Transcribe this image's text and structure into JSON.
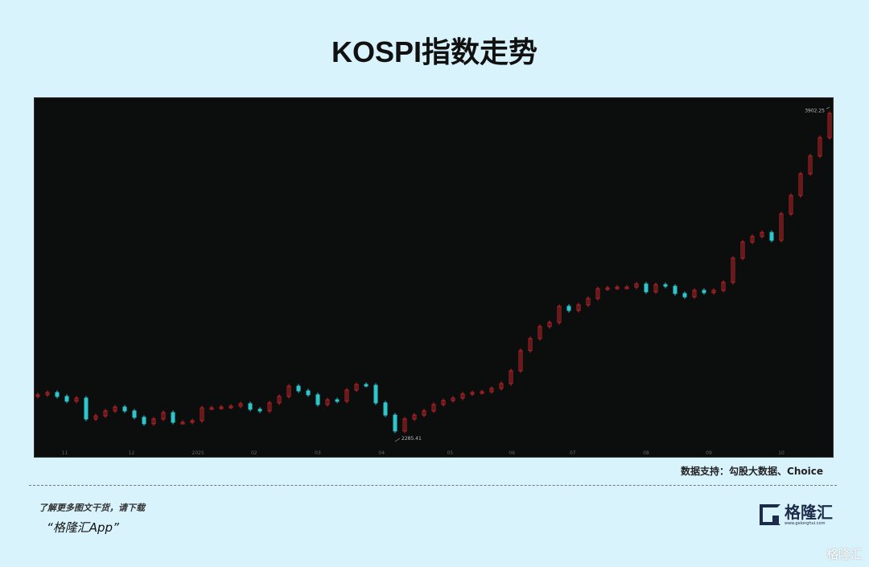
{
  "header": {
    "title": "KOSPI指数走势"
  },
  "source": "数据支持：勾股大数据、Choice",
  "footer": {
    "promo_line": "了解更多图文干货，请下载",
    "app_name": "“格隆汇App”",
    "logo_name": "格隆汇",
    "logo_url": "www.gelonghui.com",
    "watermark": "格隆汇"
  },
  "chart_data": {
    "type": "candlestick",
    "title": "",
    "colors": {
      "up": "#c0262b",
      "down": "#2ec6cc",
      "background": "#0c0d0d",
      "label": "#bbbbbb"
    },
    "ylim": [
      2211,
      3946
    ],
    "grid": false,
    "closes": [
      2511,
      2522,
      2503,
      2480,
      2495,
      2394,
      2409,
      2433,
      2452,
      2433,
      2402,
      2371,
      2394,
      2425,
      2378,
      2378,
      2386,
      2448,
      2448,
      2452,
      2456,
      2468,
      2441,
      2433,
      2472,
      2503,
      2553,
      2530,
      2511,
      2464,
      2487,
      2480,
      2534,
      2561,
      2557,
      2472,
      2413,
      2336,
      2394,
      2413,
      2433,
      2464,
      2483,
      2495,
      2515,
      2522,
      2526,
      2542,
      2565,
      2627,
      2725,
      2783,
      2841,
      2861,
      2939,
      2919,
      2946,
      2977,
      3024,
      3028,
      3032,
      3032,
      3047,
      3009,
      3044,
      3036,
      3001,
      2985,
      3016,
      3005,
      3016,
      3055,
      3172,
      3250,
      3277,
      3296,
      3258,
      3386,
      3475,
      3580,
      3666,
      3755,
      3872
    ],
    "x_ticks": [
      {
        "label": "11",
        "index": 2.8
      },
      {
        "label": "12",
        "index": 9.7
      },
      {
        "label": "2025",
        "index": 16.6
      },
      {
        "label": "02",
        "index": 22.4
      },
      {
        "label": "03",
        "index": 29
      },
      {
        "label": "04",
        "index": 35.6
      },
      {
        "label": "05",
        "index": 42.7
      },
      {
        "label": "06",
        "index": 49.1
      },
      {
        "label": "07",
        "index": 55.4
      },
      {
        "label": "08",
        "index": 63
      },
      {
        "label": "09",
        "index": 69.5
      },
      {
        "label": "10",
        "index": 77
      }
    ],
    "annotations": {
      "low": {
        "label": "2285.41",
        "value": 2285
      },
      "high": {
        "label": "3902.25",
        "value": 3902
      }
    }
  }
}
